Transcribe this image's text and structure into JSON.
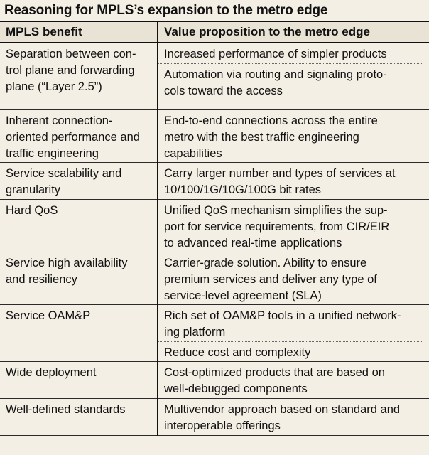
{
  "title": "Reasoning for MPLS’s expansion to the metro edge",
  "headers": {
    "benefit": "MPLS benefit",
    "value": "Value proposition to the metro edge"
  },
  "rows": [
    {
      "benefit": [
        "Separation between con-",
        "trol plane and forwarding",
        "plane (“Layer 2.5”)"
      ],
      "value": [
        [
          "Increased performance of simpler products"
        ],
        [
          "Automation via routing and signaling proto-",
          "cols toward the access"
        ]
      ]
    },
    {
      "benefit": [
        "Inherent connection-",
        "oriented performance and",
        "traffic engineering"
      ],
      "value": [
        [
          "End-to-end connections across the entire",
          "metro with the best traffic engineering",
          "capabilities"
        ]
      ]
    },
    {
      "benefit": [
        "Service scalability and",
        "granularity"
      ],
      "value": [
        [
          "Carry larger number and types of services at",
          "10/100/1G/10G/100G bit rates"
        ]
      ]
    },
    {
      "benefit": [
        "Hard QoS"
      ],
      "value": [
        [
          "Unified QoS mechanism simplifies the sup-",
          "port for service requirements, from CIR/EIR",
          "to advanced real-time applications"
        ]
      ]
    },
    {
      "benefit": [
        "Service high availability",
        "and resiliency"
      ],
      "value": [
        [
          "Carrier-grade solution. Ability to ensure",
          "premium services and deliver any type of",
          "service-level agreement (SLA)"
        ]
      ]
    },
    {
      "benefit": [
        "Service OAM&P"
      ],
      "value": [
        [
          "Rich set of OAM&P tools in a unified network-",
          "ing platform"
        ],
        [
          "Reduce cost and complexity"
        ]
      ]
    },
    {
      "benefit": [
        "Wide deployment"
      ],
      "value": [
        [
          "Cost-optimized products that are based on",
          "well-debugged components"
        ]
      ]
    },
    {
      "benefit": [
        "Well-defined standards"
      ],
      "value": [
        [
          "Multivendor approach based on standard and",
          "interoperable offerings"
        ]
      ]
    }
  ]
}
